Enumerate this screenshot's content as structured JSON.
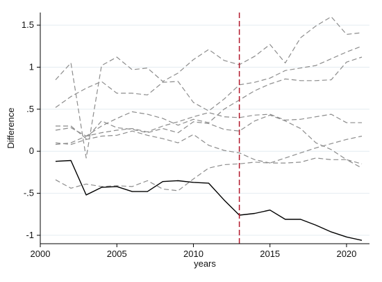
{
  "chart_data": {
    "type": "line",
    "title": "",
    "xlabel": "years",
    "ylabel": "Difference",
    "xlim": [
      2000,
      2021.5
    ],
    "ylim": [
      -1.1,
      1.65
    ],
    "xticks": [
      2000,
      2005,
      2010,
      2015,
      2020
    ],
    "yticks": [
      -1,
      -0.5,
      0,
      0.5,
      1,
      1.5
    ],
    "ytick_labels": [
      "-1",
      "-.5",
      "0",
      ".5",
      "1",
      "1.5"
    ],
    "grid": "horizontal",
    "reference_line": {
      "x": 2013,
      "color": "#b2182b",
      "style": "dashed"
    },
    "x": [
      2001,
      2002,
      2003,
      2004,
      2005,
      2006,
      2007,
      2008,
      2009,
      2010,
      2011,
      2012,
      2013,
      2014,
      2015,
      2016,
      2017,
      2018,
      2019,
      2020,
      2021
    ],
    "series": [
      {
        "style": "solid",
        "color": "#000000",
        "values": [
          -0.12,
          -0.11,
          -0.52,
          -0.43,
          -0.42,
          -0.48,
          -0.48,
          -0.36,
          -0.35,
          -0.37,
          -0.38,
          -0.58,
          -0.76,
          -0.74,
          -0.7,
          -0.81,
          -0.81,
          -0.88,
          -0.96,
          -1.02,
          -1.06
        ]
      },
      {
        "style": "dashed",
        "color": "#8c8c8c",
        "values": [
          0.85,
          1.05,
          -0.08,
          1.02,
          1.12,
          0.97,
          0.99,
          0.83,
          0.93,
          1.09,
          1.21,
          1.08,
          1.03,
          1.13,
          1.27,
          1.05,
          1.35,
          1.49,
          1.6,
          1.39,
          1.41
        ]
      },
      {
        "style": "dashed",
        "color": "#8c8c8c",
        "values": [
          0.52,
          0.65,
          0.75,
          0.83,
          0.69,
          0.69,
          0.67,
          0.82,
          0.83,
          0.58,
          0.48,
          0.62,
          0.79,
          0.82,
          0.87,
          0.96,
          0.99,
          1.02,
          1.1,
          1.18,
          1.25
        ]
      },
      {
        "style": "dashed",
        "color": "#8c8c8c",
        "values": [
          0.25,
          0.28,
          0.18,
          0.22,
          0.25,
          0.27,
          0.23,
          0.3,
          0.35,
          0.41,
          0.46,
          0.41,
          0.4,
          0.43,
          0.44,
          0.37,
          0.38,
          0.41,
          0.44,
          0.34,
          0.34
        ]
      },
      {
        "style": "dashed",
        "color": "#8c8c8c",
        "values": [
          0.08,
          0.1,
          0.18,
          0.3,
          0.39,
          0.47,
          0.44,
          0.39,
          0.31,
          0.38,
          0.34,
          0.5,
          0.61,
          0.72,
          0.8,
          0.86,
          0.84,
          0.84,
          0.85,
          1.06,
          1.12
        ]
      },
      {
        "style": "dashed",
        "color": "#8c8c8c",
        "values": [
          0.3,
          0.3,
          0.15,
          0.36,
          0.28,
          0.26,
          0.22,
          0.27,
          0.22,
          0.35,
          0.33,
          0.26,
          0.24,
          0.36,
          0.43,
          0.36,
          0.27,
          0.1,
          0.02,
          -0.1,
          -0.15
        ]
      },
      {
        "style": "dashed",
        "color": "#8c8c8c",
        "values": [
          0.1,
          0.08,
          0.14,
          0.18,
          0.19,
          0.24,
          0.19,
          0.15,
          0.1,
          0.2,
          0.07,
          0.01,
          -0.02,
          -0.1,
          -0.14,
          -0.14,
          -0.13,
          -0.08,
          -0.1,
          -0.1,
          -0.2
        ]
      },
      {
        "style": "dashed",
        "color": "#8c8c8c",
        "values": [
          -0.34,
          -0.44,
          -0.39,
          -0.42,
          -0.41,
          -0.42,
          -0.35,
          -0.45,
          -0.47,
          -0.33,
          -0.2,
          -0.16,
          -0.15,
          -0.13,
          -0.14,
          -0.08,
          -0.02,
          0.04,
          0.09,
          0.14,
          0.18
        ]
      }
    ]
  }
}
